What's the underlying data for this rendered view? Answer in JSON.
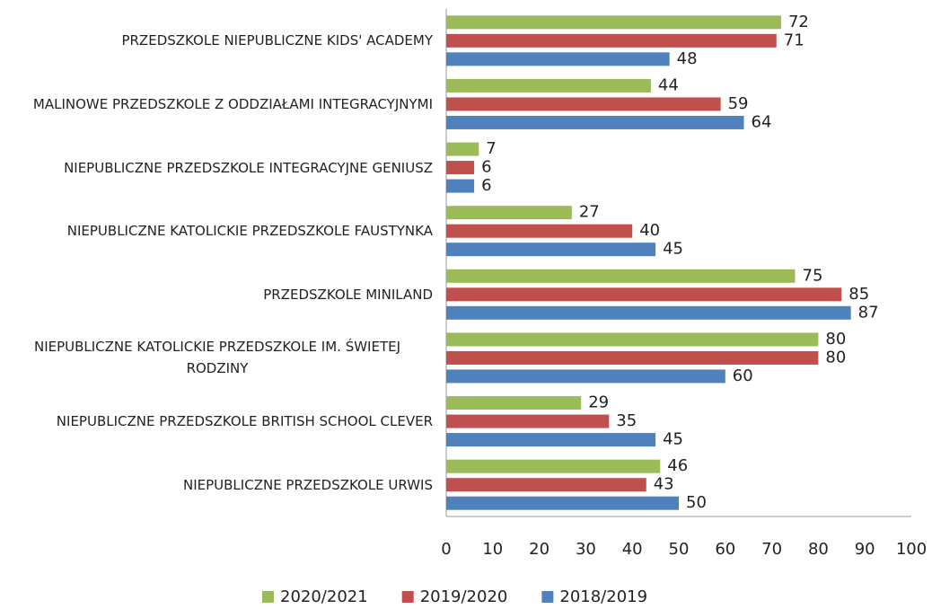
{
  "chart_data": {
    "type": "bar",
    "orientation": "horizontal",
    "categories": [
      "PRZEDSZKOLE NIEPUBLICZNE KIDS' ACADEMY",
      "MALINOWE PRZEDSZKOLE Z ODDZIAŁAMI INTEGRACYJNYMI",
      "NIEPUBLICZNE PRZEDSZKOLE INTEGRACYJNE GENIUSZ",
      "NIEPUBLICZNE KATOLICKIE PRZEDSZKOLE FAUSTYNKA",
      "PRZEDSZKOLE MINILAND",
      "NIEPUBLICZNE KATOLICKIE PRZEDSZKOLE IM. ŚWIETEJ RODZINY",
      "NIEPUBLICZNE PRZEDSZKOLE BRITISH SCHOOL CLEVER",
      "NIEPUBLICZNE PRZEDSZKOLE URWIS"
    ],
    "series": [
      {
        "name": "2020/2021",
        "color": "#9bbb59",
        "values": [
          72,
          44,
          7,
          27,
          75,
          80,
          29,
          46
        ]
      },
      {
        "name": "2019/2020",
        "color": "#c0504d",
        "values": [
          71,
          59,
          6,
          40,
          85,
          80,
          35,
          43
        ]
      },
      {
        "name": "2018/2019",
        "color": "#4f81bd",
        "values": [
          48,
          64,
          6,
          45,
          87,
          60,
          45,
          50
        ]
      }
    ],
    "xlim": [
      0,
      100
    ],
    "xticks": [
      0,
      10,
      20,
      30,
      40,
      50,
      60,
      70,
      80,
      90,
      100
    ],
    "grid": false,
    "legend": "bottom",
    "data_labels": true
  }
}
